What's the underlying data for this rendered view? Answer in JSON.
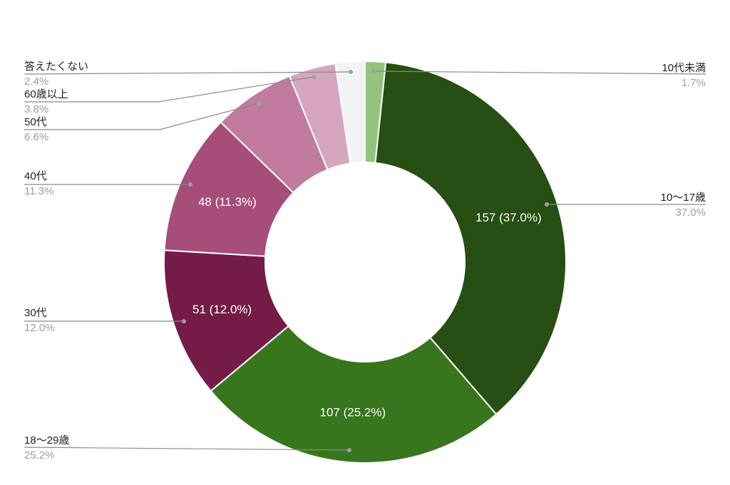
{
  "chart_data": {
    "type": "pie",
    "donut": true,
    "title": "",
    "slices": [
      {
        "category": "10代未満",
        "percent_label": "1.7%",
        "value": 7,
        "slice_label": "",
        "color": "#93c47d"
      },
      {
        "category": "10〜17歳",
        "percent_label": "37.0%",
        "value": 157,
        "slice_label": "157 (37.0%)",
        "color": "#274e13"
      },
      {
        "category": "18〜29歳",
        "percent_label": "25.2%",
        "value": 107,
        "slice_label": "107 (25.2%)",
        "color": "#38761d"
      },
      {
        "category": "30代",
        "percent_label": "12.0%",
        "value": 51,
        "slice_label": "51 (12.0%)",
        "color": "#741b47"
      },
      {
        "category": "40代",
        "percent_label": "11.3%",
        "value": 48,
        "slice_label": "48 (11.3%)",
        "color": "#a64d79"
      },
      {
        "category": "50代",
        "percent_label": "6.6%",
        "value": 28,
        "slice_label": "",
        "color": "#c27ba0"
      },
      {
        "category": "60歳以上",
        "percent_label": "3.8%",
        "value": 16,
        "slice_label": "",
        "color": "#d5a6bd"
      },
      {
        "category": "答えたくない",
        "percent_label": "2.4%",
        "value": 10,
        "slice_label": "",
        "color": "#f3f3f3"
      }
    ],
    "legend": "callout-labels"
  }
}
